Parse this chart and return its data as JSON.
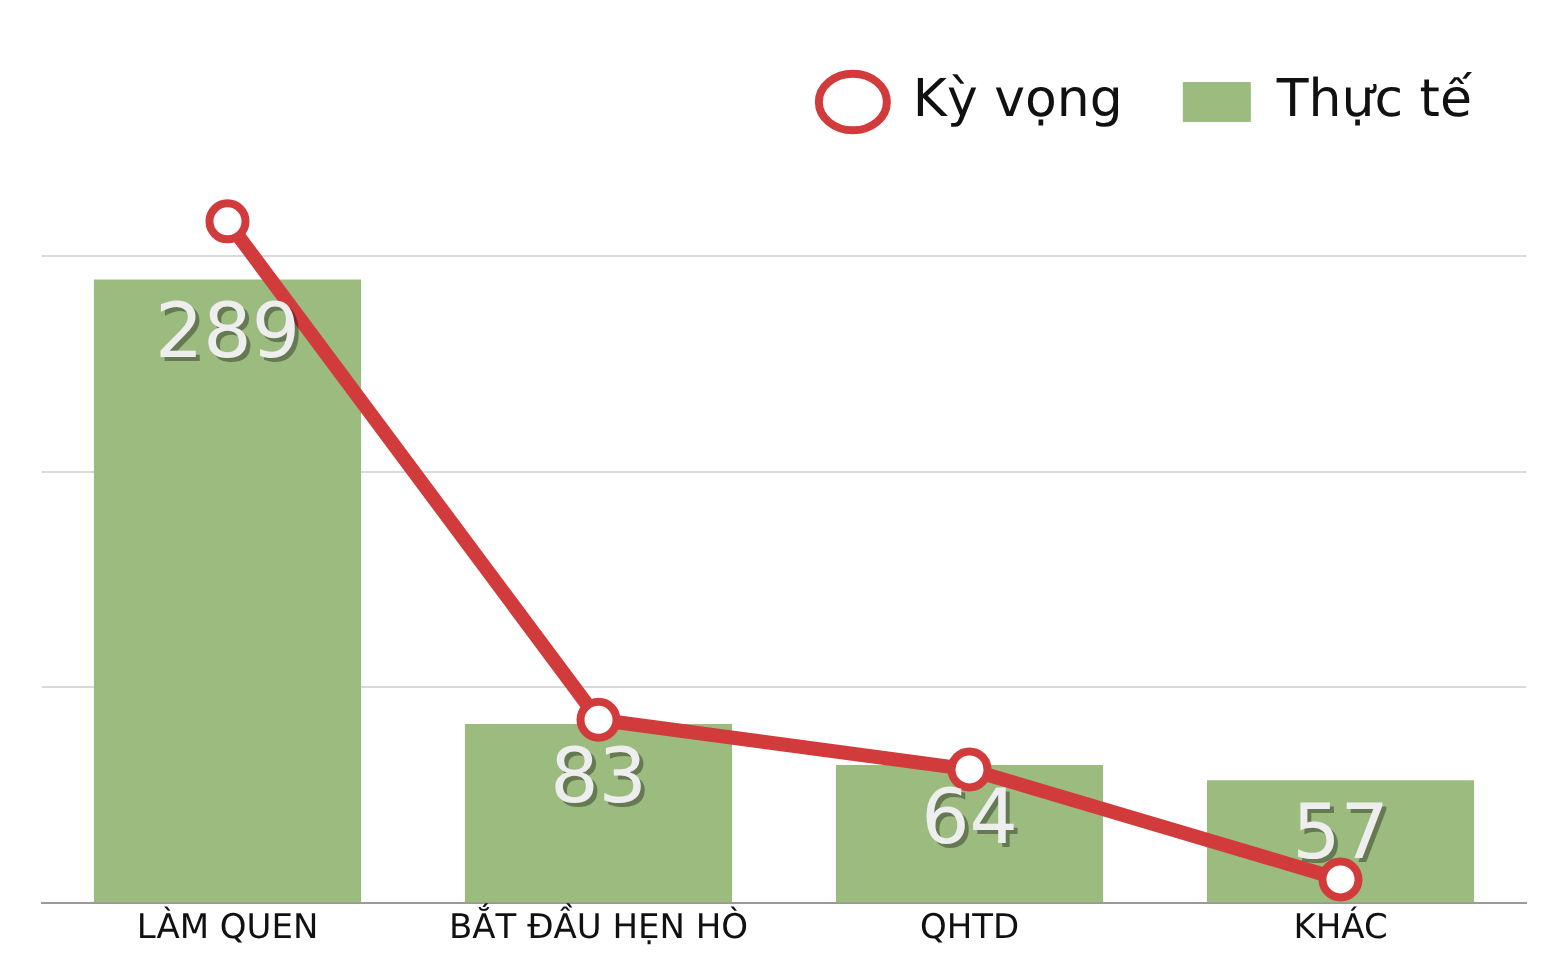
{
  "chart_data": {
    "type": "bar",
    "categories": [
      "LÀM QUEN",
      "BẮT ĐẦU HẸN HÒ",
      "QHTD",
      "KHÁC"
    ],
    "series": [
      {
        "name": "Kỳ vọng",
        "type": "line",
        "color": "#d13b3b",
        "values": [
          316,
          85,
          62,
          11
        ]
      },
      {
        "name": "Thực tế",
        "color": "#9bbb7f",
        "values": [
          289,
          83,
          64,
          57
        ],
        "value_labels": [
          "289",
          "83",
          "64",
          "57"
        ]
      }
    ],
    "yticks": [
      {
        "value": 0,
        "label": null
      },
      {
        "value": 100,
        "label": null
      },
      {
        "value": 200,
        "label": null
      },
      {
        "value": 300,
        "label": null
      }
    ],
    "tick_labels": "x",
    "grid": "y",
    "legend": "top",
    "marker": "circle",
    "line_style": "solid"
  }
}
